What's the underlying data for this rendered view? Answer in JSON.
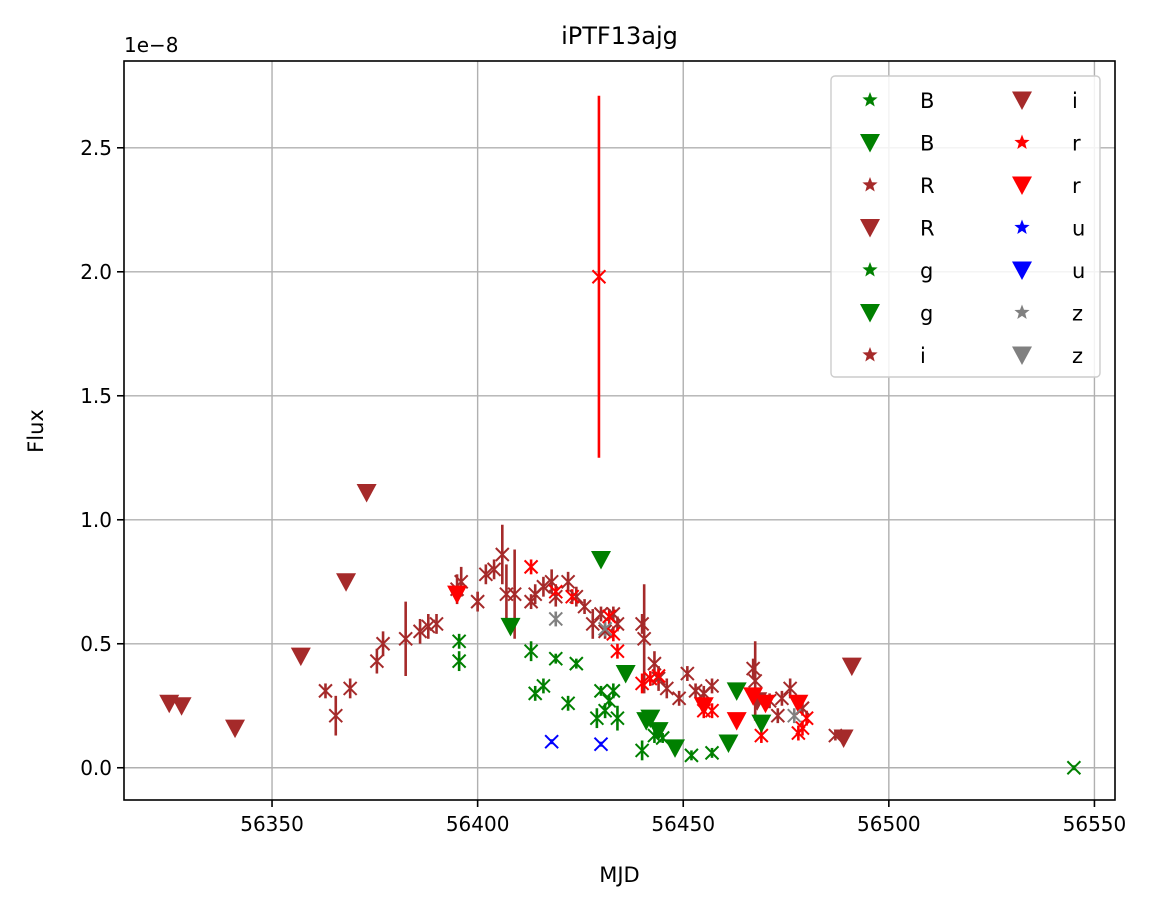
{
  "chart_data": {
    "type": "scatter",
    "title": "iPTF13ajg",
    "xlabel": "MJD",
    "ylabel": "Flux",
    "y_offset_label": "1e−8",
    "xlim": [
      56314,
      56555
    ],
    "ylim": [
      -1.3e-09,
      2.85e-08
    ],
    "xticks": [
      56350,
      56400,
      56450,
      56500,
      56550
    ],
    "xtick_labels": [
      "56350",
      "56400",
      "56450",
      "56500",
      "56550"
    ],
    "yticks": [
      0.0,
      5e-09,
      1e-08,
      1.5e-08,
      2e-08,
      2.5e-08
    ],
    "ytick_labels": [
      "0.0",
      "0.5",
      "1.0",
      "1.5",
      "2.0",
      "2.5"
    ],
    "grid": true,
    "legend_position": "top-right",
    "legend_columns": 2,
    "colors": {
      "B": "#008000",
      "R": "#a52a2a",
      "g": "#008000",
      "i": "#a52a2a",
      "r": "#ff0000",
      "u": "#0000ff",
      "z": "#808080"
    },
    "legend": [
      {
        "label": "B",
        "marker": "star",
        "color": "#008000"
      },
      {
        "label": "B",
        "marker": "triangle",
        "color": "#008000"
      },
      {
        "label": "R",
        "marker": "star",
        "color": "#a52a2a"
      },
      {
        "label": "R",
        "marker": "triangle",
        "color": "#a52a2a"
      },
      {
        "label": "g",
        "marker": "star",
        "color": "#008000"
      },
      {
        "label": "g",
        "marker": "triangle",
        "color": "#008000"
      },
      {
        "label": "i",
        "marker": "star",
        "color": "#a52a2a"
      },
      {
        "label": "i",
        "marker": "triangle",
        "color": "#a52a2a"
      },
      {
        "label": "r",
        "marker": "star",
        "color": "#ff0000"
      },
      {
        "label": "r",
        "marker": "triangle",
        "color": "#ff0000"
      },
      {
        "label": "u",
        "marker": "star",
        "color": "#0000ff"
      },
      {
        "label": "u",
        "marker": "triangle",
        "color": "#0000ff"
      },
      {
        "label": "z",
        "marker": "star",
        "color": "#808080"
      },
      {
        "label": "z",
        "marker": "triangle",
        "color": "#808080"
      }
    ],
    "series": [
      {
        "band": "R",
        "marker": "x",
        "color": "#a52a2a",
        "points": [
          [
            56363,
            3.1e-09,
            3e-10
          ],
          [
            56365.5,
            2.1e-09,
            8e-10
          ],
          [
            56369,
            3.2e-09,
            4e-10
          ],
          [
            56375.5,
            4.3e-09,
            5e-10
          ],
          [
            56377,
            5e-09,
            5e-10
          ],
          [
            56382.5,
            5.2e-09,
            1.5e-09
          ],
          [
            56386,
            5.5e-09,
            5e-10
          ],
          [
            56388,
            5.7e-09,
            5e-10
          ],
          [
            56390,
            5.8e-09,
            4e-10
          ],
          [
            56395,
            7.2e-09,
            6e-10
          ],
          [
            56396,
            7.5e-09,
            6e-10
          ],
          [
            56400,
            6.7e-09,
            4e-10
          ],
          [
            56402,
            7.8e-09,
            4e-10
          ],
          [
            56404,
            8e-09,
            4e-10
          ],
          [
            56406,
            8.6e-09,
            1.2e-09
          ],
          [
            56407,
            7e-09,
            1.2e-09
          ],
          [
            56409,
            7e-09,
            1.8e-09
          ],
          [
            56413,
            6.7e-09,
            3e-10
          ],
          [
            56414,
            7e-09,
            4e-10
          ],
          [
            56416,
            7.3e-09,
            4e-10
          ],
          [
            56418,
            7.5e-09,
            5e-10
          ],
          [
            56419,
            6.9e-09,
            4e-10
          ],
          [
            56422,
            7.5e-09,
            4e-10
          ],
          [
            56424,
            6.9e-09,
            4e-10
          ],
          [
            56426,
            6.5e-09,
            3e-10
          ],
          [
            56428,
            5.8e-09,
            6e-10
          ],
          [
            56430,
            6.2e-09,
            3e-10
          ],
          [
            56431,
            5.5e-09,
            3e-10
          ],
          [
            56433,
            6.2e-09,
            3e-10
          ],
          [
            56434,
            5.8e-09,
            3e-10
          ],
          [
            56440,
            5.8e-09,
            4e-10
          ],
          [
            56440.5,
            5.2e-09,
            2.2e-09
          ],
          [
            56443,
            4.2e-09,
            5e-10
          ],
          [
            56444,
            3.6e-09,
            5e-10
          ],
          [
            56446,
            3.2e-09,
            4e-10
          ],
          [
            56449,
            2.8e-09,
            3e-10
          ],
          [
            56451,
            3.8e-09,
            3e-10
          ],
          [
            56453,
            3.1e-09,
            3e-10
          ],
          [
            56455,
            3e-09,
            3e-10
          ],
          [
            56457,
            3.3e-09,
            3e-10
          ],
          [
            56467,
            4e-09,
            4e-10
          ],
          [
            56467.5,
            3.5e-09,
            1.6e-09
          ],
          [
            56471,
            2.7e-09,
            3e-10
          ],
          [
            56473,
            2.1e-09,
            3e-10
          ],
          [
            56474,
            2.8e-09,
            3e-10
          ],
          [
            56476,
            3.2e-09,
            4e-10
          ],
          [
            56479,
            2.4e-09,
            3e-10
          ],
          [
            56487,
            1.3e-09,
            2e-10
          ]
        ]
      },
      {
        "band": "R",
        "marker": "triangle",
        "color": "#a52a2a",
        "points": [
          [
            56325,
            2.6e-09
          ],
          [
            56328,
            2.5e-09
          ],
          [
            56341,
            1.6e-09
          ],
          [
            56357,
            4.5e-09
          ],
          [
            56368,
            7.5e-09
          ],
          [
            56373,
            1.11e-08
          ],
          [
            56468,
            2.7e-09
          ],
          [
            56489,
            1.2e-09
          ],
          [
            56491,
            4.1e-09
          ]
        ]
      },
      {
        "band": "g",
        "marker": "x",
        "color": "#008000",
        "points": [
          [
            56395.5,
            5.1e-09,
            3e-10
          ],
          [
            56395.5,
            4.3e-09,
            4e-10
          ],
          [
            56413,
            4.7e-09,
            4e-10
          ],
          [
            56414,
            3e-09,
            3e-10
          ],
          [
            56416,
            3.3e-09,
            3e-10
          ],
          [
            56419,
            4.4e-09,
            2e-10
          ],
          [
            56422,
            2.6e-09,
            3e-10
          ],
          [
            56424,
            4.2e-09,
            2e-10
          ],
          [
            56429,
            2e-09,
            4e-10
          ],
          [
            56430,
            3.1e-09,
            2e-10
          ],
          [
            56431,
            2.3e-09,
            3e-10
          ],
          [
            56432,
            2.7e-09,
            2e-10
          ],
          [
            56433,
            3.1e-09,
            3e-10
          ],
          [
            56434,
            2e-09,
            5e-10
          ],
          [
            56440,
            7e-10,
            4e-10
          ],
          [
            56443,
            1.3e-09,
            3e-10
          ],
          [
            56445,
            1.2e-09,
            2e-10
          ],
          [
            56452,
            5e-10,
            2e-10
          ],
          [
            56457,
            6e-10,
            2e-10
          ],
          [
            56545,
            0.0,
            1e-10
          ]
        ]
      },
      {
        "band": "g",
        "marker": "triangle",
        "color": "#008000",
        "points": [
          [
            56408,
            5.7e-09
          ],
          [
            56430,
            8.4e-09
          ],
          [
            56436,
            3.8e-09
          ],
          [
            56441,
            1.9e-09
          ],
          [
            56442,
            2e-09
          ],
          [
            56444,
            1.5e-09
          ],
          [
            56448,
            8e-10
          ],
          [
            56461,
            1e-09
          ],
          [
            56463,
            3.1e-09
          ],
          [
            56469,
            1.8e-09
          ]
        ]
      },
      {
        "band": "r",
        "marker": "x",
        "color": "#ff0000",
        "points": [
          [
            56413,
            8.1e-09,
            3e-10
          ],
          [
            56419,
            7.1e-09,
            3e-10
          ],
          [
            56423,
            6.9e-09,
            3e-10
          ],
          [
            56429.5,
            1.98e-08,
            7.3e-09
          ],
          [
            56432,
            6.1e-09,
            3e-10
          ],
          [
            56433,
            5.4e-09,
            3e-10
          ],
          [
            56434,
            4.7e-09,
            3e-10
          ],
          [
            56440,
            3.4e-09,
            4e-10
          ],
          [
            56442,
            3.6e-09,
            3e-10
          ],
          [
            56444,
            3.7e-09,
            3e-10
          ],
          [
            56455,
            2.3e-09,
            3e-10
          ],
          [
            56457,
            2.3e-09,
            3e-10
          ],
          [
            56469,
            1.3e-09,
            3e-10
          ],
          [
            56478,
            1.4e-09,
            3e-10
          ],
          [
            56479,
            1.6e-09,
            3e-10
          ],
          [
            56480,
            2e-09,
            3e-10
          ]
        ]
      },
      {
        "band": "r",
        "marker": "triangle",
        "color": "#ff0000",
        "points": [
          [
            56395,
            7e-09
          ],
          [
            56455,
            2.5e-09
          ],
          [
            56463,
            1.9e-09
          ],
          [
            56467,
            2.9e-09
          ],
          [
            56470,
            2.6e-09
          ],
          [
            56478,
            2.6e-09
          ]
        ]
      },
      {
        "band": "u",
        "marker": "x",
        "color": "#0000ff",
        "points": [
          [
            56418,
            1.05e-09,
            1e-10
          ],
          [
            56430,
            9.5e-10,
            1e-10
          ]
        ]
      },
      {
        "band": "z",
        "marker": "x",
        "color": "#808080",
        "points": [
          [
            56419,
            6e-09,
            3e-10
          ],
          [
            56431,
            5.6e-09,
            3e-10
          ],
          [
            56477,
            2.1e-09,
            3e-10
          ]
        ]
      }
    ]
  }
}
